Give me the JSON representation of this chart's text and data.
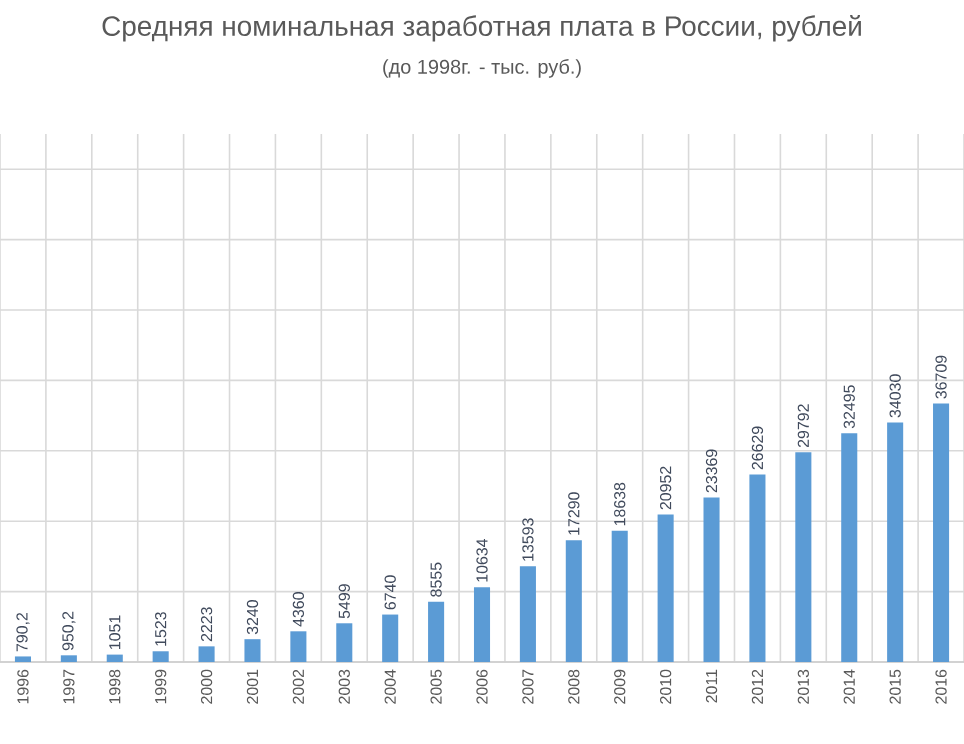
{
  "chart_data": {
    "type": "bar",
    "title": "Средняя номинальная заработная плата в России, рублей",
    "subtitle": "(до 1998г. - тыс. руб.)",
    "categories": [
      "1996",
      "1997",
      "1998",
      "1999",
      "2000",
      "2001",
      "2002",
      "2003",
      "2004",
      "2005",
      "2006",
      "2007",
      "2008",
      "2009",
      "2010",
      "2011",
      "2012",
      "2013",
      "2014",
      "2015",
      "2016"
    ],
    "values": [
      790.2,
      950.2,
      1051,
      1523,
      2223,
      3240,
      4360,
      5499,
      6740,
      8555,
      10634,
      13593,
      17290,
      18638,
      20952,
      23369,
      26629,
      29792,
      32495,
      34030,
      36709
    ],
    "value_labels": [
      "790,2",
      "950,2",
      "1051",
      "1523",
      "2223",
      "3240",
      "4360",
      "5499",
      "6740",
      "8555",
      "10634",
      "13593",
      "17290",
      "18638",
      "20952",
      "23369",
      "26629",
      "29792",
      "32495",
      "34030",
      "36709"
    ],
    "color": "#5b9bd5",
    "ylim": [
      0,
      75000
    ],
    "tick_labels": "x",
    "grid": true
  }
}
